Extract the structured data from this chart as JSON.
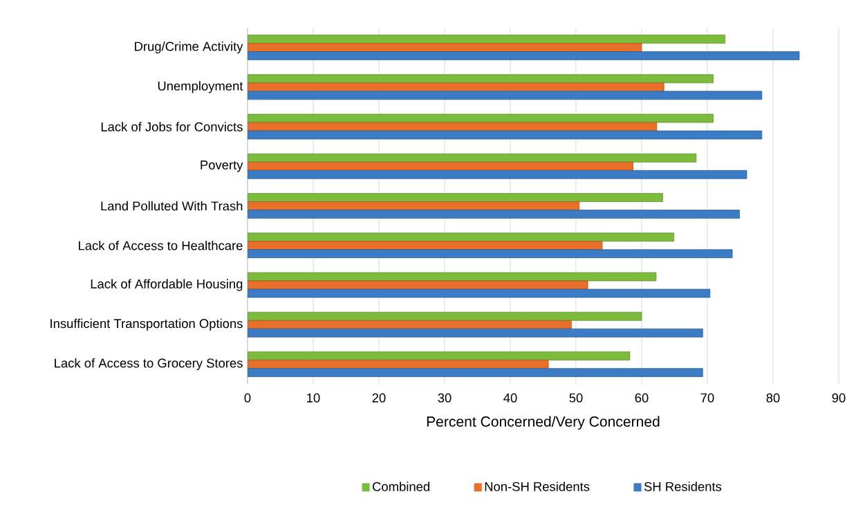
{
  "chart_data": {
    "type": "bar",
    "orientation": "horizontal",
    "categories": [
      "Drug/Crime Activity",
      "Unemployment",
      "Lack of Jobs for Convicts",
      "Poverty",
      "Land Polluted With Trash",
      "Lack of Access to Healthcare",
      "Lack of Affordable Housing",
      "Insufficient Transportation Options",
      "Lack of Access to Grocery Stores"
    ],
    "series": [
      {
        "name": "Combined",
        "color": "#7cbb3c",
        "values": [
          72.7,
          70.9,
          70.9,
          68.3,
          63.2,
          64.9,
          62.2,
          60,
          58.2
        ]
      },
      {
        "name": "Non-SH Residents",
        "color": "#e8702a",
        "values": [
          60,
          63.4,
          62.3,
          58.7,
          50.5,
          54,
          51.8,
          49.3,
          45.8
        ]
      },
      {
        "name": "SH Residents",
        "color": "#3b7cc4",
        "values": [
          84,
          78.3,
          78.3,
          76,
          74.9,
          73.8,
          70.4,
          69.3,
          69.3
        ]
      }
    ],
    "xlabel": "Percent Concerned/Very Concerned",
    "xlim": [
      0,
      90
    ],
    "xticks": [
      0,
      10,
      20,
      30,
      40,
      50,
      60,
      70,
      80,
      90
    ],
    "grid": "x",
    "legend": "bottom"
  }
}
